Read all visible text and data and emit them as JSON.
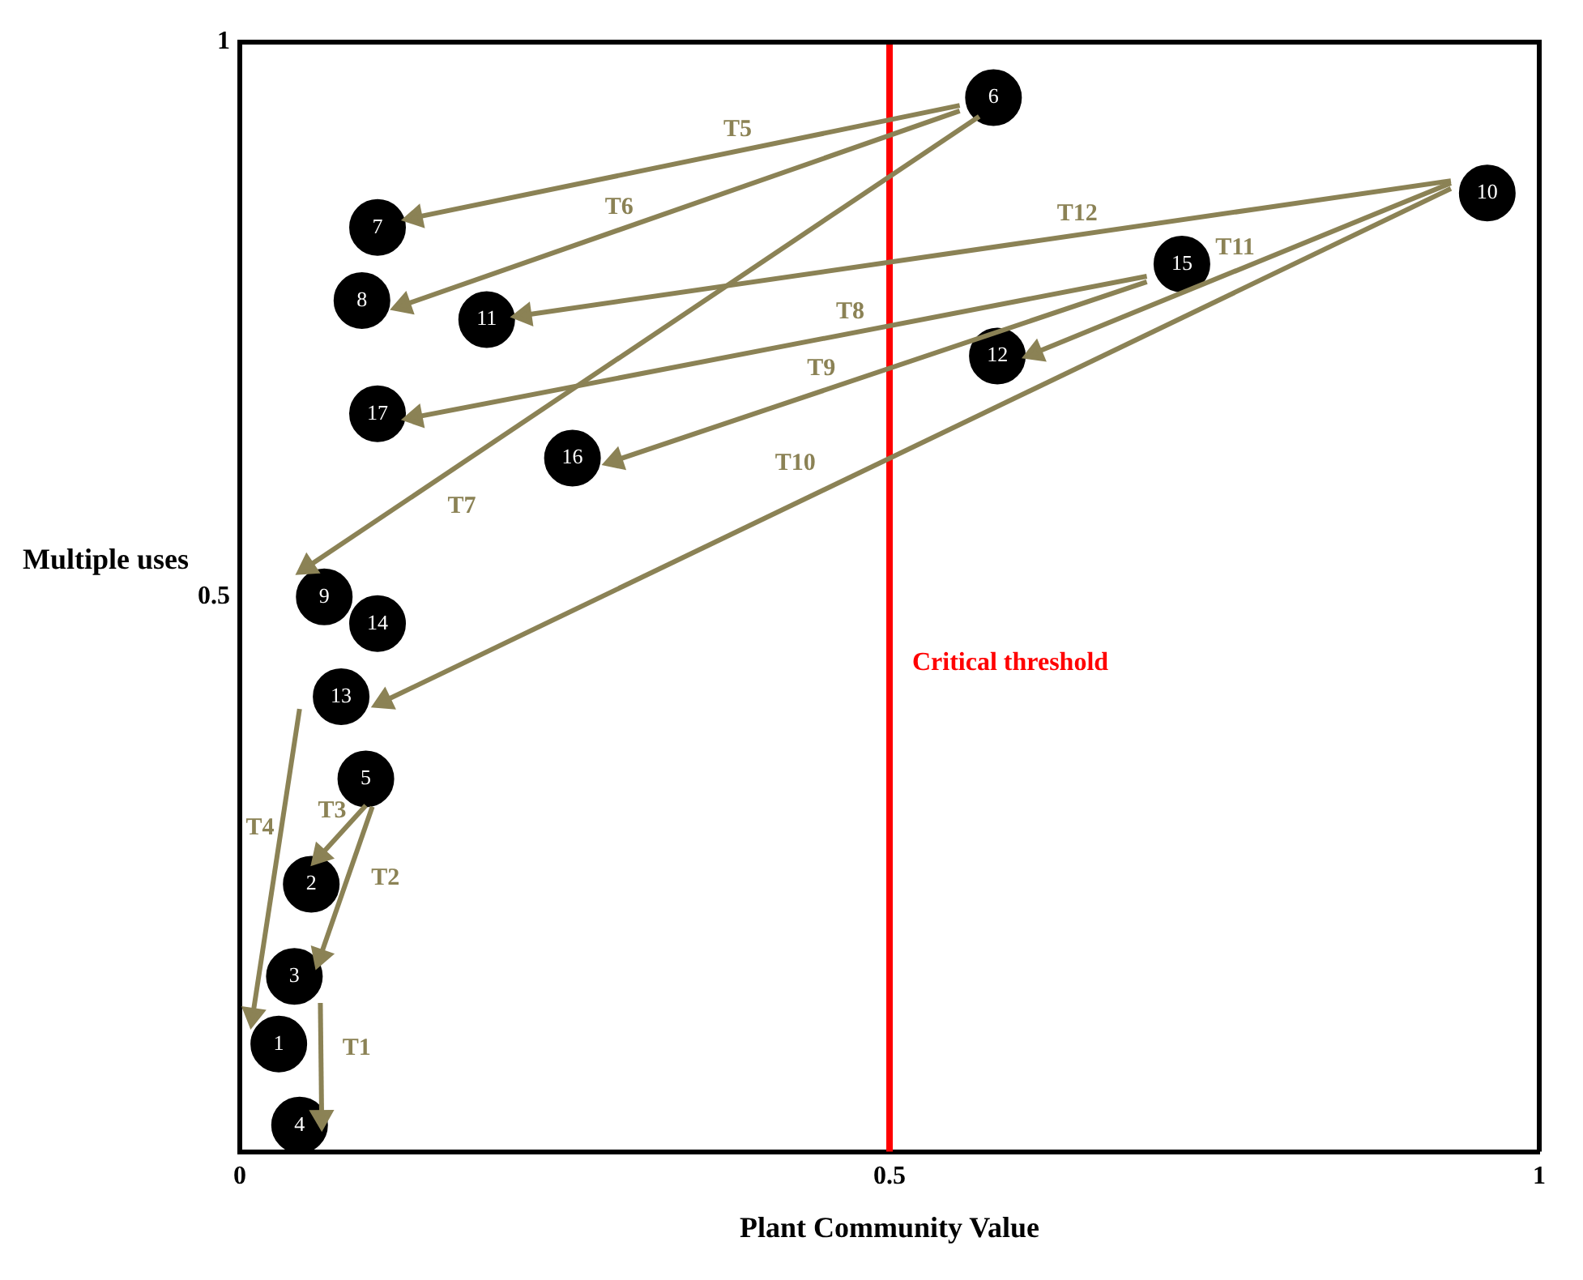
{
  "chart_data": {
    "type": "scatter",
    "xlabel": "Plant Community Value",
    "ylabel": "Multiple uses",
    "xlim": [
      0,
      1
    ],
    "ylim": [
      0,
      1
    ],
    "xticks": [
      0,
      0.5,
      1
    ],
    "yticks": [
      0.5,
      1
    ],
    "grid": false,
    "legend": false,
    "series": [
      {
        "name": "1",
        "color": "#000000",
        "marker": "circle",
        "x": [
          0.03
        ],
        "values": [
          0.097
        ]
      },
      {
        "name": "2",
        "color": "#000000",
        "marker": "circle",
        "x": [
          0.055
        ],
        "values": [
          0.241
        ]
      },
      {
        "name": "3",
        "color": "#000000",
        "marker": "circle",
        "x": [
          0.042
        ],
        "values": [
          0.158
        ]
      },
      {
        "name": "4",
        "color": "#000000",
        "marker": "circle",
        "x": [
          0.046
        ],
        "values": [
          0.024
        ]
      },
      {
        "name": "5",
        "color": "#000000",
        "marker": "circle",
        "x": [
          0.097
        ],
        "values": [
          0.336
        ]
      },
      {
        "name": "6",
        "color": "#000000",
        "marker": "circle",
        "x": [
          0.58
        ],
        "values": [
          0.95
        ]
      },
      {
        "name": "7",
        "color": "#000000",
        "marker": "circle",
        "x": [
          0.106
        ],
        "values": [
          0.833
        ]
      },
      {
        "name": "8",
        "color": "#000000",
        "marker": "circle",
        "x": [
          0.094
        ],
        "values": [
          0.767
        ]
      },
      {
        "name": "9",
        "color": "#000000",
        "marker": "circle",
        "x": [
          0.065
        ],
        "values": [
          0.5
        ]
      },
      {
        "name": "10",
        "color": "#000000",
        "marker": "circle",
        "x": [
          0.96
        ],
        "values": [
          0.864
        ]
      },
      {
        "name": "11",
        "color": "#000000",
        "marker": "circle",
        "x": [
          0.19
        ],
        "values": [
          0.75
        ]
      },
      {
        "name": "12",
        "color": "#000000",
        "marker": "circle",
        "x": [
          0.583
        ],
        "values": [
          0.717
        ]
      },
      {
        "name": "13",
        "color": "#000000",
        "marker": "circle",
        "x": [
          0.078
        ],
        "values": [
          0.41
        ]
      },
      {
        "name": "14",
        "color": "#000000",
        "marker": "circle",
        "x": [
          0.106
        ],
        "values": [
          0.476
        ]
      },
      {
        "name": "15",
        "color": "#000000",
        "marker": "circle",
        "x": [
          0.725
        ],
        "values": [
          0.8
        ]
      },
      {
        "name": "16",
        "color": "#000000",
        "marker": "circle",
        "x": [
          0.256
        ],
        "values": [
          0.625
        ]
      },
      {
        "name": "17",
        "color": "#000000",
        "marker": "circle",
        "x": [
          0.106
        ],
        "values": [
          0.665
        ]
      },
      {
        "name": "T1",
        "type": "line",
        "color": "#8b8255",
        "marker": "triangle",
        "x": [
          0.062,
          0.063
        ],
        "values": [
          0.134,
          0.031
        ]
      },
      {
        "name": "T2",
        "type": "line",
        "color": "#8b8255",
        "marker": "triangle",
        "x": [
          0.102,
          0.062
        ],
        "values": [
          0.311,
          0.176
        ]
      },
      {
        "name": "T3",
        "type": "line",
        "color": "#8b8255",
        "marker": "triangle",
        "x": [
          0.097,
          0.062
        ],
        "values": [
          0.312,
          0.267
        ]
      },
      {
        "name": "T4",
        "type": "line",
        "color": "#8b8255",
        "marker": "triangle",
        "x": [
          0.046,
          0.01
        ],
        "values": [
          0.399,
          0.123
        ]
      },
      {
        "name": "T5",
        "type": "line",
        "color": "#8b8255",
        "marker": "triangle",
        "x": [
          0.554,
          0.135
        ],
        "values": [
          0.943,
          0.842
        ]
      },
      {
        "name": "T6",
        "type": "line",
        "color": "#8b8255",
        "marker": "triangle",
        "x": [
          0.554,
          0.126
        ],
        "values": [
          0.938,
          0.763
        ]
      },
      {
        "name": "T7",
        "type": "line",
        "color": "#8b8255",
        "marker": "triangle",
        "x": [
          0.569,
          0.052
        ],
        "values": [
          0.933,
          0.527
        ]
      },
      {
        "name": "T8",
        "type": "line",
        "color": "#8b8255",
        "marker": "triangle",
        "x": [
          0.698,
          0.135
        ],
        "values": [
          0.789,
          0.662
        ]
      },
      {
        "name": "T9",
        "type": "line",
        "color": "#8b8255",
        "marker": "triangle",
        "x": [
          0.698,
          0.289
        ],
        "values": [
          0.784,
          0.623
        ]
      },
      {
        "name": "T10",
        "type": "line",
        "color": "#8b8255",
        "marker": "triangle",
        "x": [
          0.932,
          0.111
        ],
        "values": [
          0.868,
          0.406
        ]
      },
      {
        "name": "T11",
        "type": "line",
        "color": "#8b8255",
        "marker": "triangle",
        "x": [
          0.932,
          0.612
        ],
        "values": [
          0.873,
          0.72
        ]
      },
      {
        "name": "T12",
        "type": "line",
        "color": "#8b8255",
        "marker": "triangle",
        "x": [
          0.932,
          0.219
        ],
        "values": [
          0.875,
          0.754
        ]
      }
    ],
    "ref_lines": [
      {
        "axis": "x",
        "value": 0.5,
        "label": "Critical threshold",
        "color": "#ff0000"
      }
    ]
  }
}
